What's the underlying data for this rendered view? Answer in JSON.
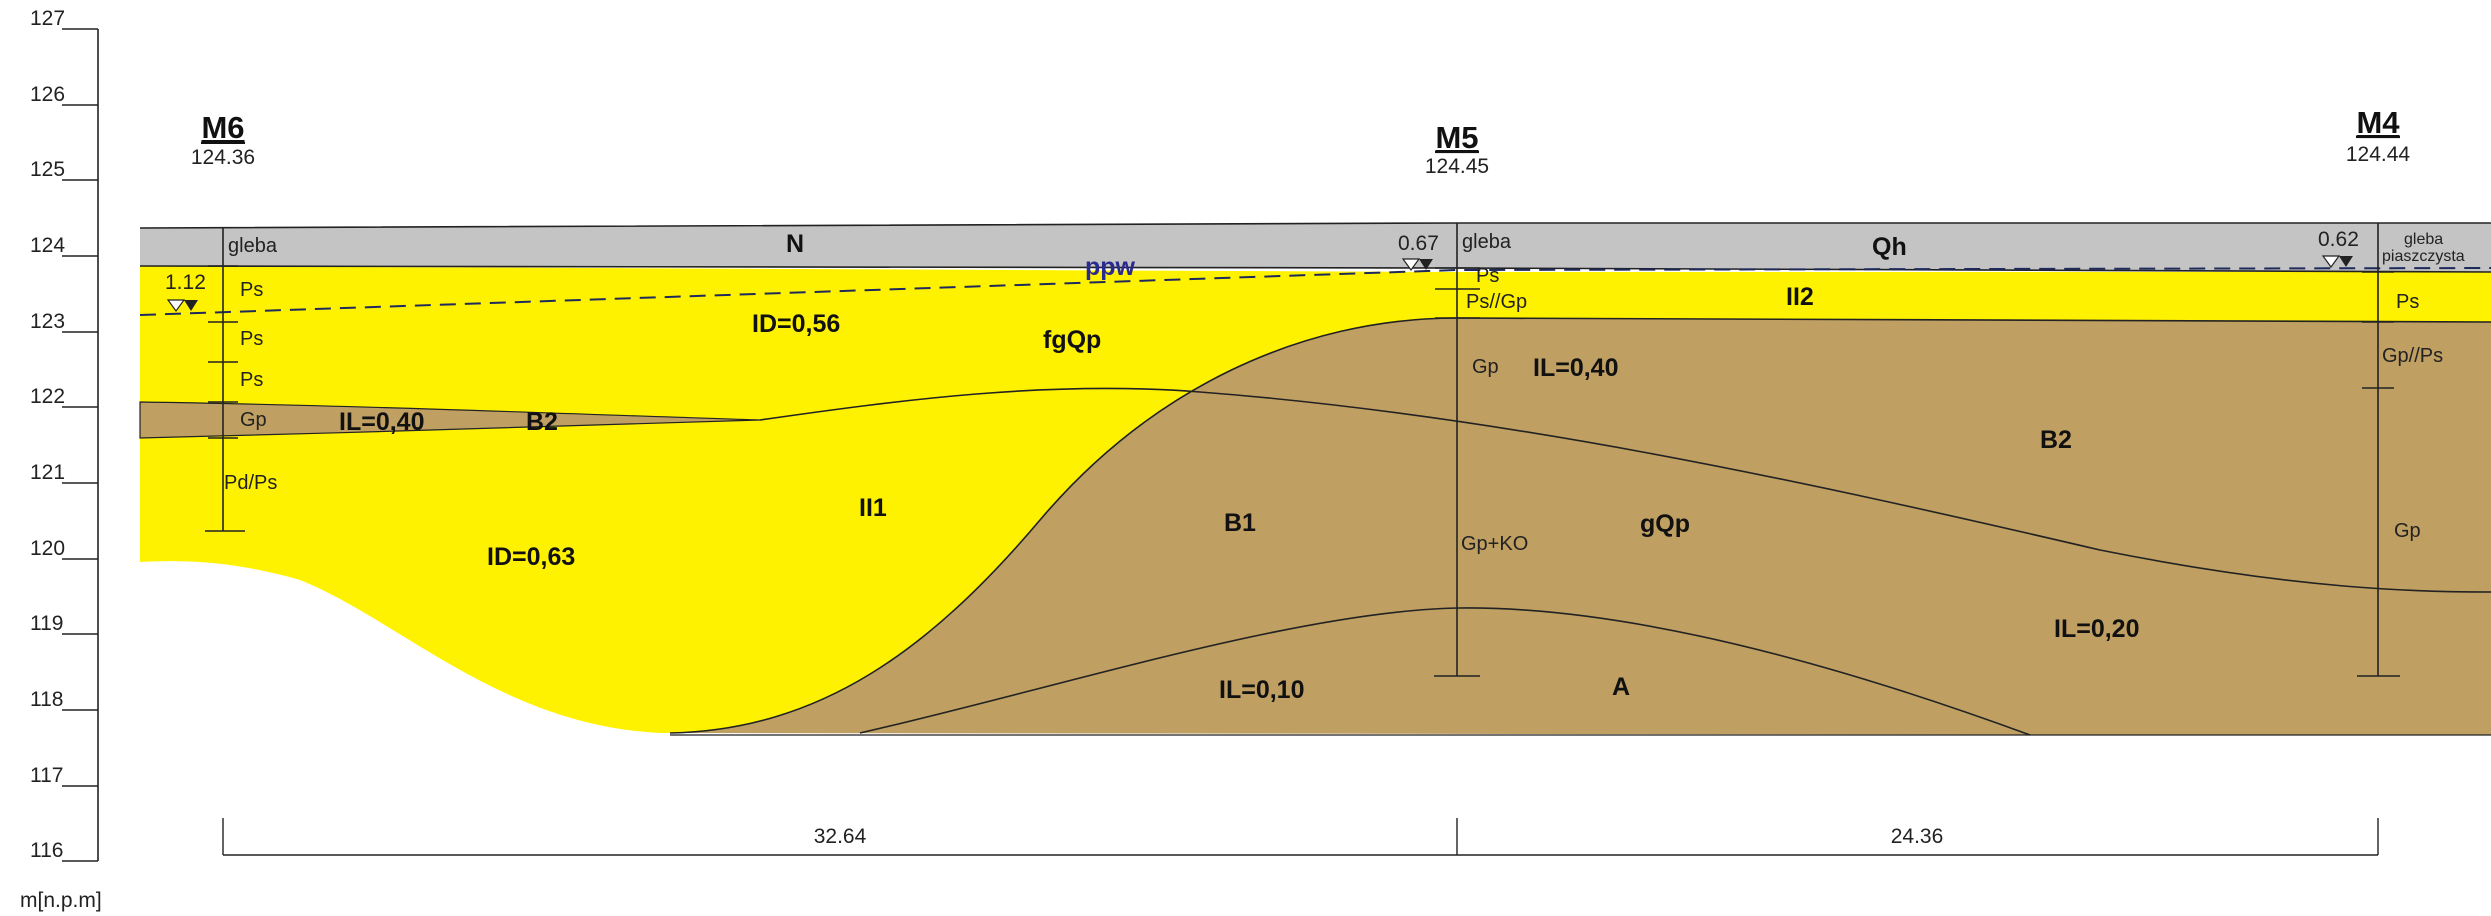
{
  "axis": {
    "ticks": [
      "127",
      "126",
      "125",
      "124",
      "123",
      "122",
      "121",
      "120",
      "119",
      "118",
      "117",
      "116"
    ],
    "unit": "m[n.p.m]"
  },
  "wells": [
    {
      "name": "M6",
      "elevation": "124.36",
      "water_level": "1.12",
      "layers": [
        "gleba",
        "Ps",
        "Ps",
        "Ps",
        "Gp",
        "Pd/Ps"
      ]
    },
    {
      "name": "M5",
      "elevation": "124.45",
      "water_level": "0.67",
      "layers": [
        "gleba",
        "Ps",
        "Ps//Gp",
        "Gp",
        "Gp+KO"
      ]
    },
    {
      "name": "M4",
      "elevation": "124.44",
      "water_level": "0.62",
      "layers": [
        "gleba",
        "piaszczysta",
        "Ps",
        "Gp//Ps",
        "Gp"
      ]
    }
  ],
  "units": {
    "N": "N",
    "Qh": "Qh",
    "ppw": "ppw",
    "II2": "II2",
    "fgQp": "fgQp",
    "ID_056": "ID=0,56",
    "IL_040_left": "IL=0,40",
    "B2_left": "B2",
    "II1": "II1",
    "ID_063": "ID=0,63",
    "B1": "B1",
    "gQp": "gQp",
    "IL_040_right": "IL=0,40",
    "B2_right": "B2",
    "IL_020": "IL=0,20",
    "IL_010": "IL=0,10",
    "A": "A"
  },
  "distances": [
    "32.64",
    "24.36"
  ],
  "colors": {
    "soil": "#c4c4c4",
    "sand": "#fff200",
    "clay": "#bf9f62",
    "water_line": "#1e2a5a"
  }
}
